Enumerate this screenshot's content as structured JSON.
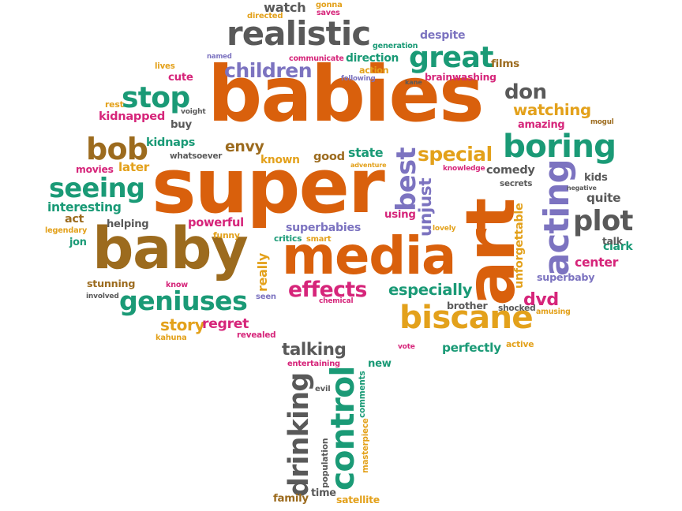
{
  "palette": {
    "orange": "#d9600c",
    "green": "#1a9a76",
    "gray": "#595959",
    "purple": "#7c73c0",
    "gold": "#e3a11b",
    "brown": "#9c6b1e",
    "magenta": "#d6257a"
  },
  "words": [
    {
      "t": "babies",
      "c": "orange"
    },
    {
      "t": "super",
      "c": "orange"
    },
    {
      "t": "media",
      "c": "orange"
    },
    {
      "t": "baby",
      "c": "brown"
    },
    {
      "t": "art",
      "c": "orange"
    },
    {
      "t": "biscane",
      "c": "gold"
    },
    {
      "t": "realistic",
      "c": "gray"
    },
    {
      "t": "great",
      "c": "green"
    },
    {
      "t": "boring",
      "c": "green"
    },
    {
      "t": "geniuses",
      "c": "green"
    },
    {
      "t": "acting",
      "c": "purple"
    },
    {
      "t": "control",
      "c": "green"
    },
    {
      "t": "drinking",
      "c": "gray"
    },
    {
      "t": "plot",
      "c": "gray"
    },
    {
      "t": "stop",
      "c": "green"
    },
    {
      "t": "bob",
      "c": "brown"
    },
    {
      "t": "seeing",
      "c": "green"
    },
    {
      "t": "children",
      "c": "purple"
    },
    {
      "t": "special",
      "c": "gold"
    },
    {
      "t": "effects",
      "c": "magenta"
    },
    {
      "t": "especially",
      "c": "green"
    },
    {
      "t": "talking",
      "c": "gray"
    },
    {
      "t": "watching",
      "c": "gold"
    },
    {
      "t": "don",
      "c": "gray"
    },
    {
      "t": "best",
      "c": "purple"
    },
    {
      "t": "dvd",
      "c": "magenta"
    },
    {
      "t": "story",
      "c": "gold"
    },
    {
      "t": "regret",
      "c": "magenta"
    },
    {
      "t": "perfectly",
      "c": "green"
    },
    {
      "t": "unjust",
      "c": "purple"
    },
    {
      "t": "watch",
      "c": "gray"
    },
    {
      "t": "despite",
      "c": "purple"
    },
    {
      "t": "direction",
      "c": "green"
    },
    {
      "t": "kidnapped",
      "c": "magenta"
    },
    {
      "t": "kidnaps",
      "c": "green"
    },
    {
      "t": "envy",
      "c": "brown"
    },
    {
      "t": "interesting",
      "c": "green"
    },
    {
      "t": "helping",
      "c": "gray"
    },
    {
      "t": "powerful",
      "c": "magenta"
    },
    {
      "t": "comedy",
      "c": "gray"
    },
    {
      "t": "unforgettable",
      "c": "gold"
    },
    {
      "t": "stunning",
      "c": "brown"
    },
    {
      "t": "superbabies",
      "c": "purple"
    },
    {
      "t": "known",
      "c": "gold"
    },
    {
      "t": "good",
      "c": "brown"
    },
    {
      "t": "state",
      "c": "green"
    },
    {
      "t": "quite",
      "c": "gray"
    },
    {
      "t": "kids",
      "c": "gray"
    },
    {
      "t": "center",
      "c": "magenta"
    },
    {
      "t": "clark",
      "c": "green"
    },
    {
      "t": "superbaby",
      "c": "purple"
    },
    {
      "t": "brother",
      "c": "gray"
    },
    {
      "t": "whatsoever",
      "c": "gray"
    },
    {
      "t": "later",
      "c": "gold"
    },
    {
      "t": "movies",
      "c": "magenta"
    },
    {
      "t": "act",
      "c": "brown"
    },
    {
      "t": "jon",
      "c": "green"
    },
    {
      "t": "really",
      "c": "gold"
    },
    {
      "t": "comments",
      "c": "green"
    },
    {
      "t": "masterpiece",
      "c": "gold"
    },
    {
      "t": "population",
      "c": "gray"
    },
    {
      "t": "time",
      "c": "gray"
    },
    {
      "t": "family",
      "c": "brown"
    },
    {
      "t": "satellite",
      "c": "gold"
    },
    {
      "t": "new",
      "c": "green"
    },
    {
      "t": "brainwashing",
      "c": "magenta"
    },
    {
      "t": "films",
      "c": "brown"
    },
    {
      "t": "amazing",
      "c": "magenta"
    },
    {
      "t": "mogul",
      "c": "brown"
    },
    {
      "t": "cute",
      "c": "magenta"
    },
    {
      "t": "buy",
      "c": "gray"
    },
    {
      "t": "lives",
      "c": "gold"
    },
    {
      "t": "using",
      "c": "magenta"
    },
    {
      "t": "lovely",
      "c": "gold"
    },
    {
      "t": "talk",
      "c": "gray"
    },
    {
      "t": "shocked",
      "c": "gray"
    },
    {
      "t": "amusing",
      "c": "gold"
    },
    {
      "t": "active",
      "c": "gold"
    },
    {
      "t": "vote",
      "c": "magenta"
    },
    {
      "t": "entertaining",
      "c": "magenta"
    },
    {
      "t": "evil",
      "c": "gray"
    },
    {
      "t": "chemical",
      "c": "magenta"
    },
    {
      "t": "revealed",
      "c": "magenta"
    },
    {
      "t": "kahuna",
      "c": "gold"
    },
    {
      "t": "know",
      "c": "magenta"
    },
    {
      "t": "involved",
      "c": "gray"
    },
    {
      "t": "seen",
      "c": "purple"
    },
    {
      "t": "critics",
      "c": "green"
    },
    {
      "t": "smart",
      "c": "gold"
    },
    {
      "t": "funny",
      "c": "gold"
    },
    {
      "t": "legendary",
      "c": "gold"
    },
    {
      "t": "secrets",
      "c": "gray"
    },
    {
      "t": "negative",
      "c": "gray"
    },
    {
      "t": "knowledge",
      "c": "magenta"
    },
    {
      "t": "adventure",
      "c": "gold"
    },
    {
      "t": "generation",
      "c": "green"
    },
    {
      "t": "communicate",
      "c": "magenta"
    },
    {
      "t": "action",
      "c": "gold"
    },
    {
      "t": "following",
      "c": "purple"
    },
    {
      "t": "kane",
      "c": "gray"
    },
    {
      "t": "named",
      "c": "purple"
    },
    {
      "t": "rest",
      "c": "gold"
    },
    {
      "t": "voight",
      "c": "gray"
    },
    {
      "t": "directed",
      "c": "gold"
    },
    {
      "t": "gonna",
      "c": "gold"
    },
    {
      "t": "saves",
      "c": "magenta"
    }
  ]
}
